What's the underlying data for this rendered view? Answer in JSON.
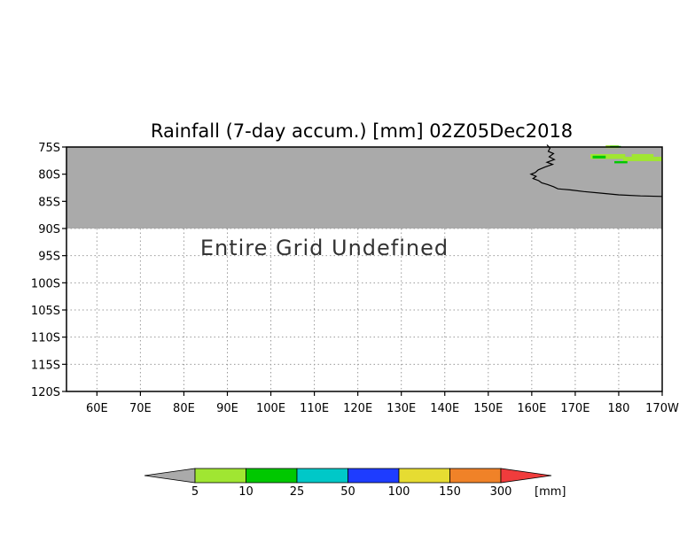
{
  "title": "Rainfall (7-day accum.) [mm] 02Z05Dec2018",
  "undefined_message": "Entire Grid Undefined",
  "map": {
    "lat_range": [
      -120,
      -75
    ],
    "lon_range": [
      53,
      190
    ],
    "lat_ticks": [
      {
        "value": -75,
        "label": "75S"
      },
      {
        "value": -80,
        "label": "80S"
      },
      {
        "value": -85,
        "label": "85S"
      },
      {
        "value": -90,
        "label": "90S"
      },
      {
        "value": -95,
        "label": "95S"
      },
      {
        "value": -100,
        "label": "100S"
      },
      {
        "value": -105,
        "label": "105S"
      },
      {
        "value": -110,
        "label": "110S"
      },
      {
        "value": -115,
        "label": "115S"
      },
      {
        "value": -120,
        "label": "120S"
      }
    ],
    "lon_ticks": [
      {
        "value": 60,
        "label": "60E"
      },
      {
        "value": 70,
        "label": "70E"
      },
      {
        "value": 80,
        "label": "80E"
      },
      {
        "value": 90,
        "label": "90E"
      },
      {
        "value": 100,
        "label": "100E"
      },
      {
        "value": 110,
        "label": "110E"
      },
      {
        "value": 120,
        "label": "120E"
      },
      {
        "value": 130,
        "label": "130E"
      },
      {
        "value": 140,
        "label": "140E"
      },
      {
        "value": 150,
        "label": "150E"
      },
      {
        "value": 160,
        "label": "160E"
      },
      {
        "value": 170,
        "label": "170E"
      },
      {
        "value": 180,
        "label": "180"
      },
      {
        "value": 190,
        "label": "170W"
      }
    ],
    "undefined_region_lat": [
      -90,
      -75
    ],
    "undefined_color": "#aaaaaa",
    "coastline": [
      [
        163.5,
        -74.6
      ],
      [
        164.2,
        -75.2
      ],
      [
        163.8,
        -75.8
      ],
      [
        165.0,
        -76.2
      ],
      [
        164.0,
        -76.8
      ],
      [
        165.2,
        -77.3
      ],
      [
        163.5,
        -77.8
      ],
      [
        164.8,
        -78.2
      ],
      [
        163.0,
        -78.7
      ],
      [
        161.5,
        -79.2
      ],
      [
        160.8,
        -79.7
      ],
      [
        159.8,
        -80.0
      ],
      [
        161.0,
        -80.4
      ],
      [
        160.3,
        -80.8
      ],
      [
        161.6,
        -81.2
      ],
      [
        162.3,
        -81.6
      ],
      [
        163.6,
        -81.9
      ],
      [
        165.0,
        -82.3
      ],
      [
        166.0,
        -82.7
      ],
      [
        169.0,
        -82.9
      ],
      [
        172.0,
        -83.2
      ],
      [
        176.0,
        -83.5
      ],
      [
        180.0,
        -83.8
      ],
      [
        185.0,
        -84.0
      ],
      [
        190.0,
        -84.1
      ]
    ],
    "rain_patches": [
      {
        "lon": [
          173.5,
          181.5
        ],
        "lat": [
          -77.2,
          -76.3
        ],
        "value_class": "5-10"
      },
      {
        "lon": [
          181.0,
          190.0
        ],
        "lat": [
          -77.6,
          -76.8
        ],
        "value_class": "5-10"
      },
      {
        "lon": [
          183.0,
          188.0
        ],
        "lat": [
          -76.9,
          -76.3
        ],
        "value_class": "5-10"
      },
      {
        "lon": [
          177.0,
          180.0
        ],
        "lat": [
          -75.2,
          -74.7
        ],
        "value_class": "5-10"
      },
      {
        "lon": [
          174.0,
          177.0
        ],
        "lat": [
          -77.1,
          -76.6
        ],
        "value_class": "10-25"
      },
      {
        "lon": [
          178.0,
          180.5
        ],
        "lat": [
          -75.1,
          -74.8
        ],
        "value_class": "10-25"
      },
      {
        "lon": [
          179.0,
          182.0
        ],
        "lat": [
          -78.0,
          -77.6
        ],
        "value_class": "10-25"
      }
    ]
  },
  "legend": {
    "unit": "[mm]",
    "below_color": "#aaaaaa",
    "above_color": "#f03c3c",
    "bins": [
      {
        "label": "5",
        "color": "#a0e632"
      },
      {
        "label": "10",
        "color": "#00c800"
      },
      {
        "label": "25",
        "color": "#00c8c8"
      },
      {
        "label": "50",
        "color": "#1e3cff"
      },
      {
        "label": "100",
        "color": "#e6dc32"
      },
      {
        "label": "150",
        "color": "#f08228"
      },
      {
        "label": "300",
        "color": "#f03c3c"
      }
    ]
  },
  "colors": {
    "class_5_10": "#a0e632",
    "class_10_25": "#00c800"
  }
}
